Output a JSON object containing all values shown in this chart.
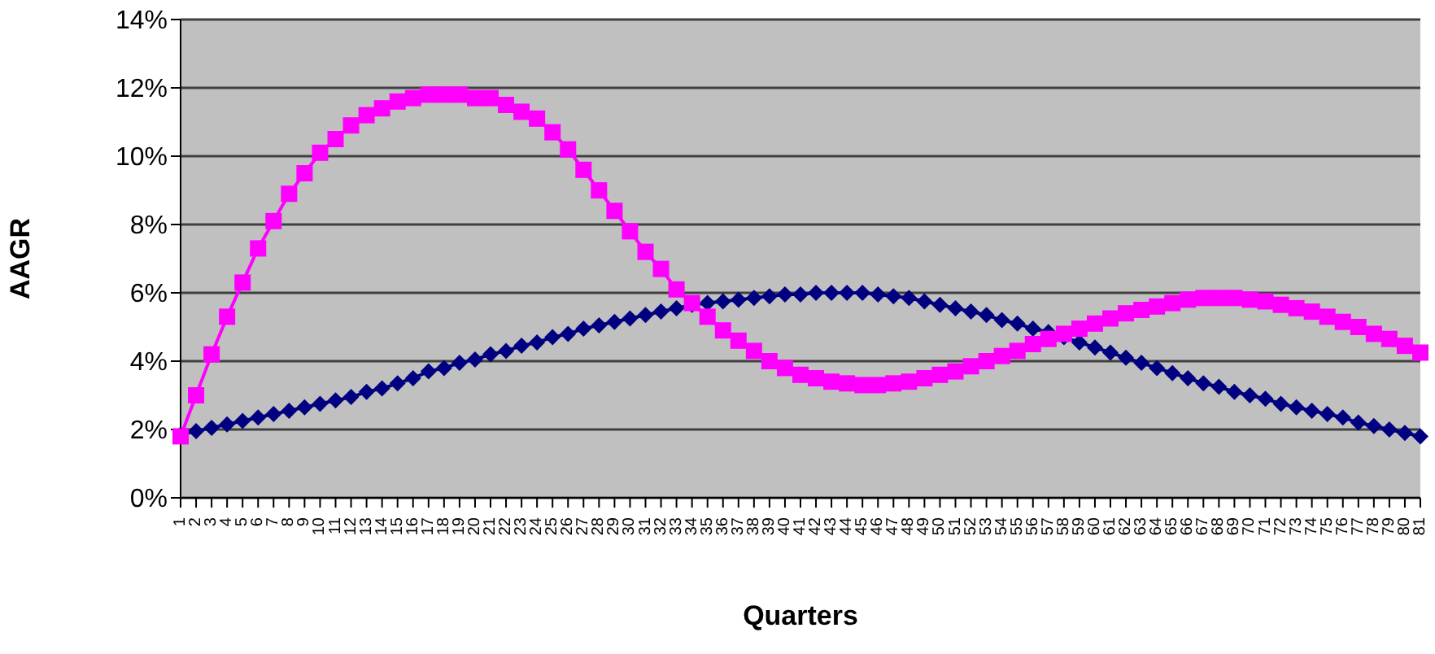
{
  "chart_data": {
    "type": "line",
    "xlabel": "Quarters",
    "ylabel": "AAGR",
    "categories": [
      "1",
      "2",
      "3",
      "4",
      "5",
      "6",
      "7",
      "8",
      "9",
      "10",
      "11",
      "12",
      "13",
      "14",
      "15",
      "16",
      "17",
      "18",
      "19",
      "20",
      "21",
      "22",
      "23",
      "24",
      "25",
      "26",
      "27",
      "28",
      "29",
      "30",
      "31",
      "32",
      "33",
      "34",
      "35",
      "36",
      "37",
      "38",
      "39",
      "40",
      "41",
      "42",
      "43",
      "44",
      "45",
      "46",
      "47",
      "48",
      "49",
      "50",
      "51",
      "52",
      "53",
      "54",
      "55",
      "56",
      "57",
      "58",
      "59",
      "60",
      "61",
      "62",
      "63",
      "64",
      "65",
      "66",
      "67",
      "68",
      "69",
      "70",
      "71",
      "72",
      "73",
      "74",
      "75",
      "76",
      "77",
      "78",
      "79",
      "80",
      "81"
    ],
    "series": [
      {
        "color": "#000080",
        "marker": "diamond",
        "values": [
          1.85,
          1.95,
          2.05,
          2.15,
          2.25,
          2.35,
          2.45,
          2.55,
          2.65,
          2.75,
          2.85,
          2.95,
          3.1,
          3.2,
          3.35,
          3.5,
          3.7,
          3.8,
          3.95,
          4.05,
          4.2,
          4.3,
          4.45,
          4.55,
          4.7,
          4.8,
          4.95,
          5.05,
          5.15,
          5.25,
          5.35,
          5.45,
          5.55,
          5.65,
          5.7,
          5.75,
          5.8,
          5.85,
          5.9,
          5.95,
          5.95,
          6.0,
          6.0,
          6.0,
          6.0,
          5.95,
          5.9,
          5.85,
          5.75,
          5.65,
          5.55,
          5.45,
          5.35,
          5.2,
          5.1,
          4.95,
          4.85,
          4.7,
          4.55,
          4.4,
          4.25,
          4.1,
          3.95,
          3.8,
          3.65,
          3.5,
          3.35,
          3.25,
          3.1,
          3.0,
          2.9,
          2.75,
          2.65,
          2.55,
          2.45,
          2.35,
          2.2,
          2.1,
          2.0,
          1.9,
          1.8
        ]
      },
      {
        "color": "#ff00ff",
        "marker": "square",
        "values": [
          1.8,
          3.0,
          4.2,
          5.3,
          6.3,
          7.3,
          8.1,
          8.9,
          9.5,
          10.1,
          10.5,
          10.9,
          11.2,
          11.4,
          11.6,
          11.7,
          11.8,
          11.8,
          11.8,
          11.7,
          11.7,
          11.5,
          11.3,
          11.1,
          10.7,
          10.2,
          9.6,
          9.0,
          8.4,
          7.8,
          7.2,
          6.7,
          6.1,
          5.7,
          5.3,
          4.9,
          4.6,
          4.3,
          4.0,
          3.8,
          3.6,
          3.5,
          3.4,
          3.35,
          3.3,
          3.3,
          3.35,
          3.4,
          3.5,
          3.6,
          3.7,
          3.85,
          4.0,
          4.15,
          4.3,
          4.5,
          4.65,
          4.8,
          4.95,
          5.1,
          5.25,
          5.4,
          5.5,
          5.6,
          5.7,
          5.8,
          5.85,
          5.85,
          5.85,
          5.8,
          5.75,
          5.65,
          5.55,
          5.45,
          5.3,
          5.15,
          5.0,
          4.8,
          4.65,
          4.45,
          4.25
        ]
      }
    ],
    "ylim": [
      0,
      14
    ],
    "yticks": [
      {
        "value": 0,
        "label": "0%"
      },
      {
        "value": 2,
        "label": "2%"
      },
      {
        "value": 4,
        "label": "4%"
      },
      {
        "value": 6,
        "label": "6%"
      },
      {
        "value": 8,
        "label": "8%"
      },
      {
        "value": 10,
        "label": "10%"
      },
      {
        "value": 12,
        "label": "12%"
      },
      {
        "value": 14,
        "label": "14%"
      }
    ],
    "grid": "y",
    "legend": false
  }
}
